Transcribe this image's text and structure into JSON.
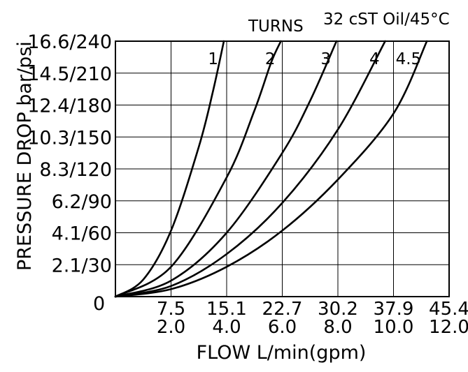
{
  "chart_data": {
    "type": "line",
    "title": "32 cST Oil/45°C",
    "legend_title": "TURNS",
    "xlabel": "FLOW L/min(gpm)",
    "ylabel": "PRESSURE DROP  bar/psi",
    "origin_label": "0",
    "x_ticks_lpm": [
      "7.5",
      "15.1",
      "22.7",
      "30.2",
      "37.9",
      "45.4"
    ],
    "x_ticks_gpm": [
      "2.0",
      "4.0",
      "6.0",
      "8.0",
      "10.0",
      "12.0"
    ],
    "y_ticks": [
      "2.1/30",
      "4.1/60",
      "6.2/90",
      "8.3/120",
      "10.3/150",
      "12.4/180",
      "14.5/210",
      "16.6/240"
    ],
    "x_unit": "gpm",
    "y_unit": "psi",
    "xlim": [
      0,
      12
    ],
    "ylim": [
      0,
      240
    ],
    "grid": true,
    "series": [
      {
        "name": "1",
        "x": [
          0,
          1,
          2,
          3,
          3.5,
          3.9
        ],
        "y": [
          0,
          16,
          62,
          141,
          192,
          240
        ]
      },
      {
        "name": "2",
        "x": [
          0,
          2,
          4,
          5,
          5.6,
          5.95
        ],
        "y": [
          0,
          28,
          112,
          175,
          220,
          240
        ]
      },
      {
        "name": "3",
        "x": [
          0,
          2,
          4,
          6,
          7,
          7.95
        ],
        "y": [
          0,
          15,
          60,
          135,
          184,
          240
        ]
      },
      {
        "name": "4",
        "x": [
          0,
          2,
          4,
          6,
          8,
          9.7
        ],
        "y": [
          0,
          10,
          40,
          88,
          157,
          240
        ]
      },
      {
        "name": "4.5",
        "x": [
          0,
          2,
          4,
          6,
          8,
          10,
          11.2
        ],
        "y": [
          0,
          7,
          28,
          62,
          110,
          172,
          240
        ]
      }
    ]
  }
}
